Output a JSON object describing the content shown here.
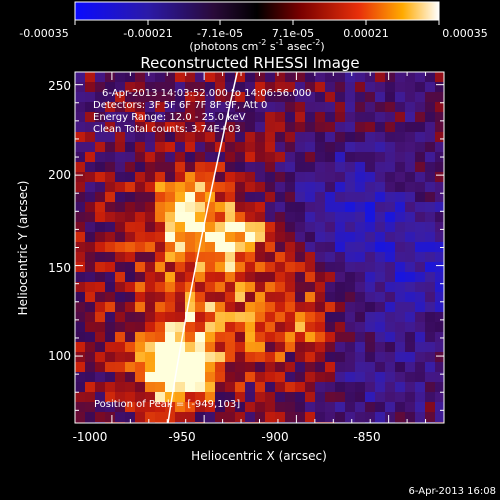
{
  "colorbar": {
    "ticks": [
      "-0.00035",
      "-0.00021",
      "-7.1e-05",
      "7.1e-05",
      "0.00021",
      "0.00035"
    ],
    "units_prefix": "(photons cm",
    "units_exp1": "-2",
    "units_mid": " s",
    "units_exp2": "-1",
    "units_mid2": " asec",
    "units_exp3": "-2",
    "units_suffix": ")"
  },
  "plot": {
    "title": "Reconstructed RHESSI Image",
    "xlabel": "Heliocentric X (arcsec)",
    "ylabel": "Heliocentric Y (arcsec)",
    "xticks": [
      "-1000",
      "-950",
      "-900",
      "-850"
    ],
    "yticks": [
      "100",
      "150",
      "200",
      "250"
    ],
    "xrange": [
      -1020,
      -820
    ],
    "yrange": [
      63,
      257
    ]
  },
  "annotations": {
    "time_range": "6-Apr-2013 14:03:52.000 to 14:06:56.000",
    "detectors": "Detectors: 3F 5F 6F 7F 8F 9F, Att 0",
    "energy": "Energy Range: 12.0 - 25.0 keV",
    "clean": "Clean     Total counts: 3.74E+03",
    "peak": "Position of Peak = [-949,103]"
  },
  "footer": {
    "timestamp": "6-Apr-2013 16:08"
  },
  "colors": {
    "background": "#000000",
    "text": "#ffffff",
    "limb_line": "#ffffff"
  }
}
